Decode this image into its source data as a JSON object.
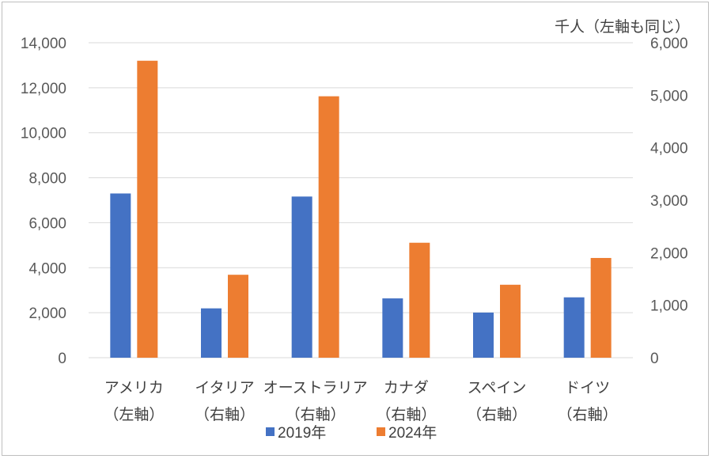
{
  "chart_data": {
    "type": "bar",
    "unit_label": "千人（左軸も同じ）",
    "categories": [
      {
        "name": "アメリカ",
        "axis_note": "（左軸）",
        "axis": "left"
      },
      {
        "name": "イタリア",
        "axis_note": "（右軸）",
        "axis": "right"
      },
      {
        "name": "オーストラリア",
        "axis_note": "（右軸）",
        "axis": "right"
      },
      {
        "name": "カナダ",
        "axis_note": "（右軸）",
        "axis": "right"
      },
      {
        "name": "スペイン",
        "axis_note": "（右軸）",
        "axis": "right"
      },
      {
        "name": "ドイツ",
        "axis_note": "（右軸）",
        "axis": "right"
      }
    ],
    "series": [
      {
        "name": "2019年",
        "color": "#4472c4",
        "values": [
          7300,
          940,
          3070,
          1130,
          860,
          1150
        ]
      },
      {
        "name": "2024年",
        "color": "#ed7d31",
        "values": [
          13200,
          1580,
          4980,
          2190,
          1390,
          1900
        ]
      }
    ],
    "left_axis": {
      "min": 0,
      "max": 14000,
      "step": 2000,
      "tick_labels": [
        "0",
        "2,000",
        "4,000",
        "6,000",
        "8,000",
        "10,000",
        "12,000",
        "14,000"
      ]
    },
    "right_axis": {
      "min": 0,
      "max": 6000,
      "step": 1000,
      "tick_labels": [
        "0",
        "1,000",
        "2,000",
        "3,000",
        "4,000",
        "5,000",
        "6,000"
      ]
    },
    "grid": true,
    "legend_position": "bottom"
  }
}
